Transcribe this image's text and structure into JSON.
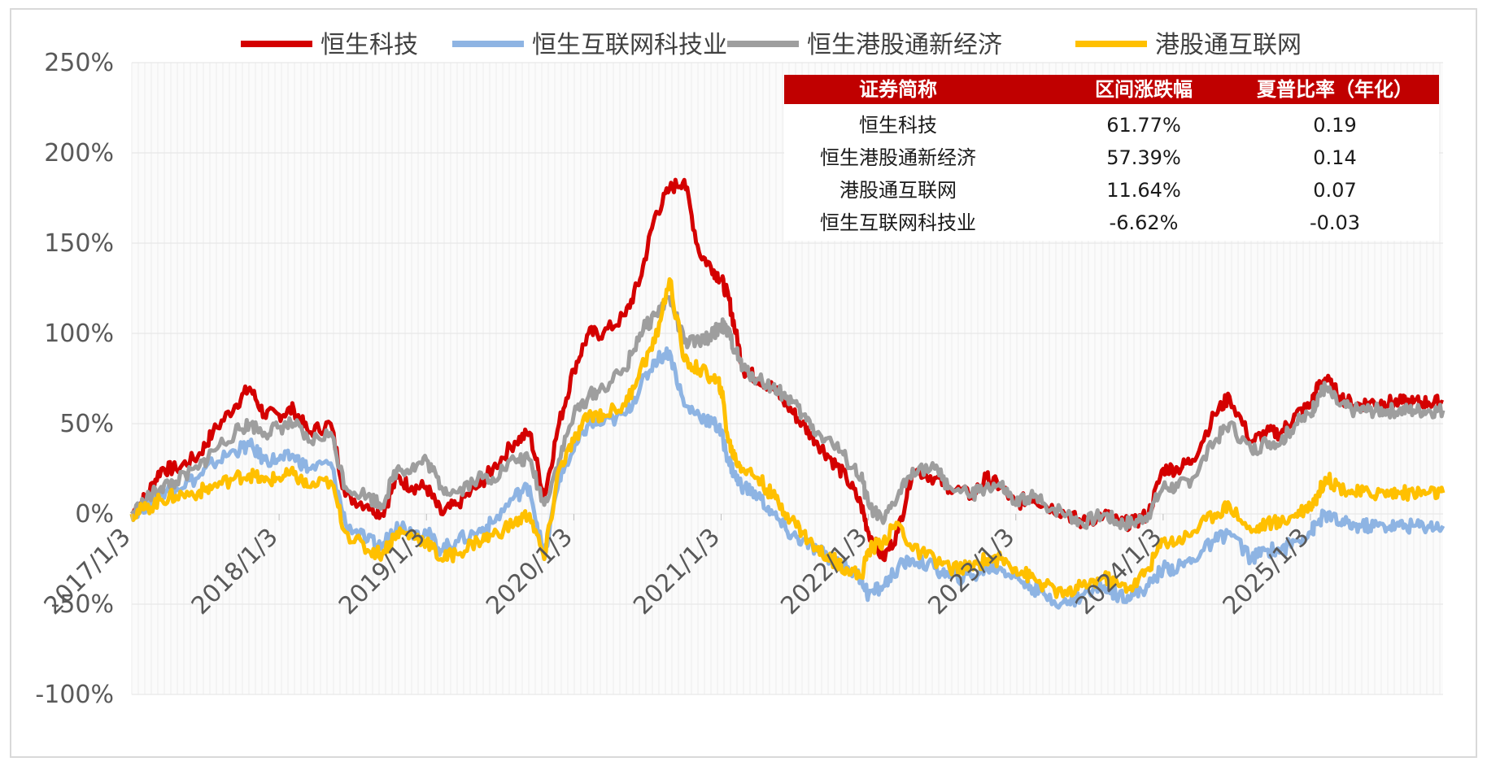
{
  "chart_data": {
    "type": "line",
    "title": "",
    "xlabel": "",
    "ylabel": "",
    "ylim": [
      -100,
      250
    ],
    "y_ticks": [
      250,
      200,
      150,
      100,
      50,
      0,
      -50,
      -100
    ],
    "y_tick_labels": [
      "250%",
      "200%",
      "150%",
      "100%",
      "50%",
      "0%",
      "-50%",
      "-100%"
    ],
    "x_tick_labels": [
      "2017/1/3",
      "2018/1/3",
      "2019/1/3",
      "2020/1/3",
      "2021/1/3",
      "2022/1/3",
      "2023/1/3",
      "2024/1/3",
      "2025/1/3"
    ],
    "x_tick_pos": [
      0,
      1,
      2,
      3,
      4,
      5,
      6,
      7,
      8
    ],
    "x_range": [
      0,
      8.9
    ],
    "legend": {
      "position": "top"
    },
    "series": [
      {
        "name": "恒生科技",
        "color": "#d40000",
        "x": [
          0,
          0.1,
          0.2,
          0.3,
          0.45,
          0.55,
          0.7,
          0.8,
          0.9,
          1.0,
          1.1,
          1.2,
          1.35,
          1.45,
          1.6,
          1.7,
          1.8,
          1.9,
          2.0,
          2.1,
          2.2,
          2.35,
          2.45,
          2.6,
          2.7,
          2.8,
          2.9,
          3.0,
          3.1,
          3.2,
          3.35,
          3.45,
          3.55,
          3.65,
          3.75,
          3.85,
          3.95,
          4.0,
          4.05,
          4.1,
          4.15,
          4.25,
          4.35,
          4.45,
          4.55,
          4.65,
          4.75,
          4.85,
          4.95,
          5.0,
          5.1,
          5.2,
          5.3,
          5.45,
          5.55,
          5.7,
          5.8,
          5.9,
          6.0,
          6.1,
          6.2,
          6.35,
          6.45,
          6.6,
          6.7,
          6.8,
          6.9,
          7.0,
          7.1,
          7.2,
          7.35,
          7.45,
          7.6,
          7.7,
          7.8,
          7.9,
          8.0,
          8.05,
          8.1,
          8.2,
          8.3,
          8.4,
          8.5,
          8.6,
          8.7,
          8.8,
          8.9
        ],
        "values": [
          0,
          10,
          25,
          25,
          32,
          45,
          60,
          70,
          55,
          55,
          58,
          45,
          50,
          10,
          5,
          0,
          20,
          15,
          15,
          0,
          5,
          15,
          25,
          40,
          45,
          10,
          50,
          80,
          100,
          100,
          110,
          130,
          165,
          180,
          185,
          145,
          135,
          130,
          120,
          100,
          80,
          75,
          70,
          60,
          50,
          40,
          30,
          20,
          5,
          -10,
          -25,
          -10,
          25,
          20,
          15,
          10,
          20,
          15,
          5,
          10,
          5,
          0,
          -5,
          0,
          -5,
          -5,
          0,
          25,
          25,
          30,
          55,
          65,
          40,
          45,
          45,
          55,
          60,
          70,
          75,
          65,
          60,
          61.77,
          61.77,
          61.77,
          61.77,
          61.77,
          61.77
        ]
      },
      {
        "name": "恒生互联网科技业",
        "color": "#8eb4e3",
        "x": [
          0,
          0.1,
          0.2,
          0.3,
          0.45,
          0.55,
          0.7,
          0.8,
          0.9,
          1.0,
          1.1,
          1.2,
          1.35,
          1.45,
          1.6,
          1.7,
          1.8,
          1.9,
          2.0,
          2.1,
          2.2,
          2.35,
          2.45,
          2.6,
          2.7,
          2.8,
          2.9,
          3.0,
          3.1,
          3.2,
          3.35,
          3.45,
          3.55,
          3.65,
          3.75,
          3.85,
          3.95,
          4.0,
          4.05,
          4.1,
          4.15,
          4.25,
          4.35,
          4.45,
          4.55,
          4.65,
          4.75,
          4.85,
          4.95,
          5.0,
          5.1,
          5.2,
          5.3,
          5.45,
          5.55,
          5.7,
          5.8,
          5.9,
          6.0,
          6.1,
          6.2,
          6.35,
          6.45,
          6.6,
          6.7,
          6.8,
          6.9,
          7.0,
          7.1,
          7.2,
          7.35,
          7.45,
          7.6,
          7.7,
          7.8,
          7.9,
          8.0,
          8.05,
          8.1,
          8.2,
          8.3,
          8.4,
          8.5,
          8.6,
          8.7,
          8.8,
          8.9
        ],
        "values": [
          0,
          5,
          12,
          15,
          20,
          28,
          35,
          38,
          30,
          30,
          32,
          25,
          28,
          -5,
          -15,
          -18,
          -5,
          -10,
          -10,
          -20,
          -15,
          -10,
          -5,
          10,
          15,
          -25,
          20,
          35,
          50,
          50,
          55,
          70,
          85,
          90,
          60,
          55,
          50,
          45,
          30,
          20,
          15,
          10,
          0,
          -10,
          -15,
          -20,
          -25,
          -30,
          -35,
          -45,
          -40,
          -30,
          -25,
          -30,
          -35,
          -35,
          -30,
          -30,
          -35,
          -40,
          -45,
          -50,
          -45,
          -40,
          -45,
          -45,
          -40,
          -30,
          -30,
          -25,
          -15,
          -10,
          -25,
          -20,
          -20,
          -15,
          -10,
          -5,
          0,
          -5,
          -6.62,
          -6.62,
          -6.62,
          -6.62,
          -6.62,
          -6.62,
          -6.62
        ]
      },
      {
        "name": "恒生港股通新经济",
        "color": "#9e9e9e",
        "x": [
          0,
          0.1,
          0.2,
          0.3,
          0.45,
          0.55,
          0.7,
          0.8,
          0.9,
          1.0,
          1.1,
          1.2,
          1.35,
          1.45,
          1.6,
          1.7,
          1.8,
          1.9,
          2.0,
          2.1,
          2.2,
          2.35,
          2.45,
          2.6,
          2.7,
          2.8,
          2.9,
          3.0,
          3.1,
          3.2,
          3.35,
          3.45,
          3.55,
          3.65,
          3.75,
          3.85,
          3.95,
          4.0,
          4.05,
          4.1,
          4.15,
          4.25,
          4.35,
          4.45,
          4.55,
          4.65,
          4.75,
          4.85,
          4.95,
          5.0,
          5.1,
          5.2,
          5.3,
          5.45,
          5.55,
          5.7,
          5.8,
          5.9,
          6.0,
          6.1,
          6.2,
          6.35,
          6.45,
          6.6,
          6.7,
          6.8,
          6.9,
          7.0,
          7.1,
          7.2,
          7.35,
          7.45,
          7.6,
          7.7,
          7.8,
          7.9,
          8.0,
          8.05,
          8.1,
          8.2,
          8.3,
          8.4,
          8.5,
          8.6,
          8.7,
          8.8,
          8.9
        ],
        "values": [
          0,
          8,
          15,
          18,
          25,
          35,
          45,
          50,
          45,
          48,
          50,
          40,
          45,
          15,
          10,
          5,
          25,
          25,
          30,
          15,
          12,
          20,
          20,
          30,
          30,
          5,
          30,
          55,
          65,
          70,
          80,
          100,
          110,
          120,
          95,
          95,
          100,
          105,
          100,
          90,
          80,
          75,
          70,
          65,
          55,
          45,
          40,
          30,
          20,
          5,
          -5,
          10,
          25,
          25,
          15,
          10,
          15,
          15,
          5,
          10,
          5,
          0,
          -5,
          0,
          -5,
          -5,
          0,
          15,
          15,
          20,
          40,
          50,
          35,
          40,
          40,
          50,
          55,
          65,
          70,
          60,
          57.39,
          57.39,
          57.39,
          57.39,
          57.39,
          57.39,
          57.39
        ]
      },
      {
        "name": "港股通互联网",
        "color": "#ffc000",
        "x": [
          0,
          0.1,
          0.2,
          0.3,
          0.45,
          0.55,
          0.7,
          0.8,
          0.9,
          1.0,
          1.1,
          1.2,
          1.35,
          1.45,
          1.6,
          1.7,
          1.8,
          1.9,
          2.0,
          2.1,
          2.2,
          2.35,
          2.45,
          2.6,
          2.7,
          2.8,
          2.9,
          3.0,
          3.1,
          3.2,
          3.35,
          3.45,
          3.55,
          3.65,
          3.75,
          3.85,
          3.95,
          4.0,
          4.05,
          4.1,
          4.15,
          4.25,
          4.35,
          4.45,
          4.55,
          4.65,
          4.75,
          4.85,
          4.95,
          5.0,
          5.1,
          5.2,
          5.3,
          5.45,
          5.55,
          5.7,
          5.8,
          5.9,
          6.0,
          6.1,
          6.2,
          6.35,
          6.45,
          6.6,
          6.7,
          6.8,
          6.9,
          7.0,
          7.1,
          7.2,
          7.35,
          7.45,
          7.6,
          7.7,
          7.8,
          7.9,
          8.0,
          8.05,
          8.1,
          8.2,
          8.3,
          8.4,
          8.5,
          8.6,
          8.7,
          8.8,
          8.9
        ],
        "values": [
          0,
          3,
          8,
          10,
          12,
          15,
          20,
          22,
          18,
          20,
          22,
          15,
          18,
          -10,
          -20,
          -22,
          -10,
          -12,
          -15,
          -25,
          -22,
          -15,
          -12,
          -5,
          0,
          -25,
          25,
          40,
          55,
          55,
          60,
          80,
          95,
          130,
          85,
          80,
          75,
          70,
          40,
          30,
          25,
          20,
          10,
          0,
          -10,
          -20,
          -25,
          -30,
          -35,
          -20,
          -15,
          -5,
          -20,
          -25,
          -30,
          -30,
          -25,
          -25,
          -30,
          -35,
          -40,
          -45,
          -40,
          -35,
          -40,
          -40,
          -30,
          -15,
          -15,
          -10,
          0,
          5,
          -10,
          -5,
          -5,
          0,
          5,
          10,
          20,
          15,
          11.64,
          11.64,
          11.64,
          11.64,
          11.64,
          11.64,
          11.64
        ]
      }
    ],
    "table": {
      "headers": [
        "证券简称",
        "区间涨跌幅",
        "夏普比率（年化）"
      ],
      "rows": [
        [
          "恒生科技",
          "61.77%",
          "0.19"
        ],
        [
          "恒生港股通新经济",
          "57.39%",
          "0.14"
        ],
        [
          "港股通互联网",
          "11.64%",
          "0.07"
        ],
        [
          "恒生互联网科技业",
          "-6.62%",
          "-0.03"
        ]
      ],
      "header_color": "#c00000"
    }
  }
}
